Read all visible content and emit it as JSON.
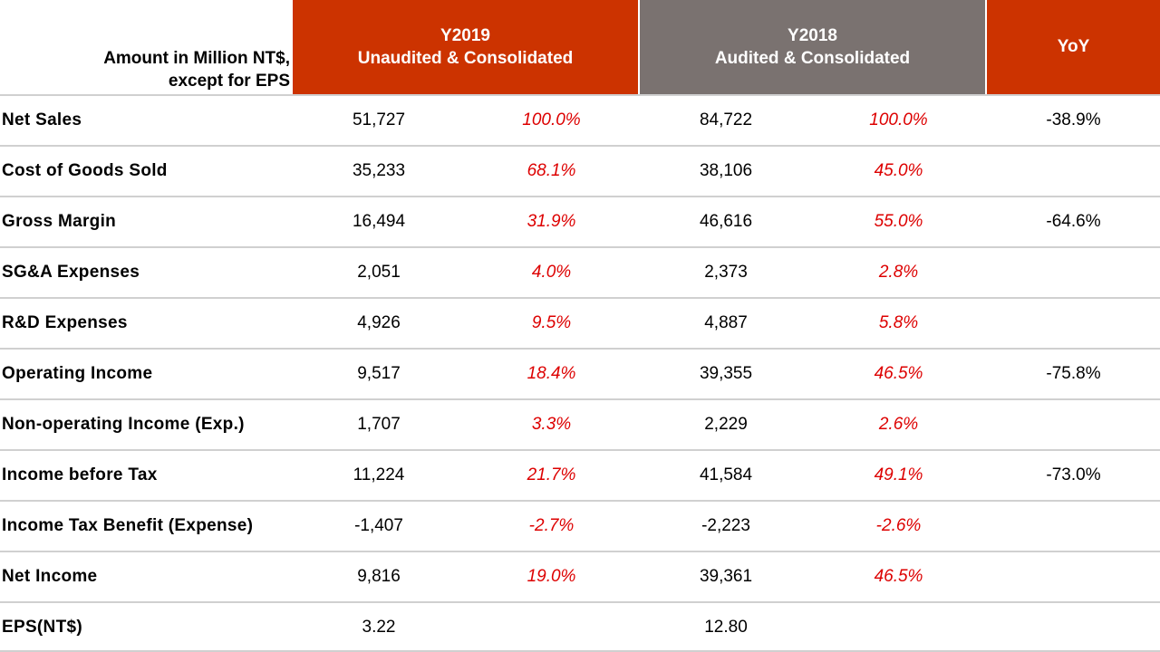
{
  "header": {
    "unit_line1": "Amount in Million  NT$,",
    "unit_line2": "except for EPS",
    "y2019_line1": "Y2019",
    "y2019_line2": "Unaudited & Consolidated",
    "y2018_line1": "Y2018",
    "y2018_line2": "Audited & Consolidated",
    "yoy": "YoY"
  },
  "colors": {
    "accent_red": "#cc3300",
    "header_gray": "#7a7270",
    "percent_red": "#dd0000",
    "divider": "#d0d0d0"
  },
  "rows": [
    {
      "label": "Net Sales",
      "y2019": "51,727",
      "y2019_pct": "100.0%",
      "y2018": "84,722",
      "y2018_pct": "100.0%",
      "yoy": "-38.9%"
    },
    {
      "label": "Cost of Goods Sold",
      "y2019": "35,233",
      "y2019_pct": "68.1%",
      "y2018": "38,106",
      "y2018_pct": "45.0%",
      "yoy": ""
    },
    {
      "label": "Gross Margin",
      "y2019": "16,494",
      "y2019_pct": "31.9%",
      "y2018": "46,616",
      "y2018_pct": "55.0%",
      "yoy": "-64.6%"
    },
    {
      "label": "SG&A Expenses",
      "y2019": "2,051",
      "y2019_pct": "4.0%",
      "y2018": "2,373",
      "y2018_pct": "2.8%",
      "yoy": ""
    },
    {
      "label": "R&D Expenses",
      "y2019": "4,926",
      "y2019_pct": "9.5%",
      "y2018": "4,887",
      "y2018_pct": "5.8%",
      "yoy": ""
    },
    {
      "label": "Operating Income",
      "y2019": "9,517",
      "y2019_pct": "18.4%",
      "y2018": "39,355",
      "y2018_pct": "46.5%",
      "yoy": "-75.8%"
    },
    {
      "label": "Non-operating Income (Exp.)",
      "y2019": "1,707",
      "y2019_pct": "3.3%",
      "y2018": "2,229",
      "y2018_pct": "2.6%",
      "yoy": ""
    },
    {
      "label": "Income before Tax",
      "y2019": "11,224",
      "y2019_pct": "21.7%",
      "y2018": "41,584",
      "y2018_pct": "49.1%",
      "yoy": "-73.0%"
    },
    {
      "label": "Income Tax Benefit (Expense)",
      "y2019": "-1,407",
      "y2019_pct": "-2.7%",
      "y2018": "-2,223",
      "y2018_pct": "-2.6%",
      "yoy": ""
    },
    {
      "label": "Net Income",
      "y2019": "9,816",
      "y2019_pct": "19.0%",
      "y2018": "39,361",
      "y2018_pct": "46.5%",
      "yoy": ""
    },
    {
      "label": "EPS(NT$)",
      "y2019": "3.22",
      "y2019_pct": "",
      "y2018": "12.80",
      "y2018_pct": "",
      "yoy": ""
    }
  ]
}
